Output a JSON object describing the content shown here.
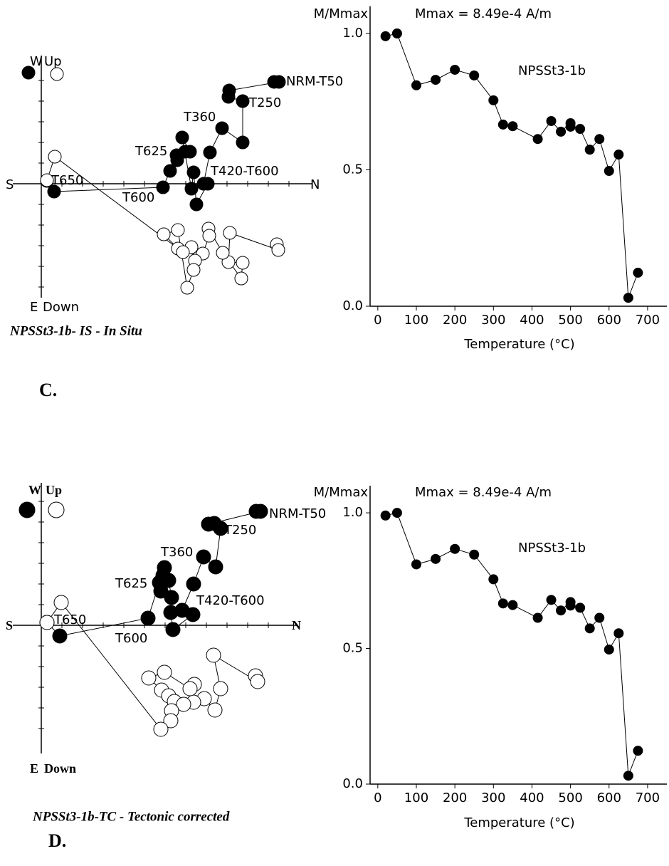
{
  "chart_data": [
    {
      "type": "zijderveld",
      "title": "NPSSt3-1b- IS - In Situ",
      "panel_label": "C.",
      "axis_labels": {
        "left": "S",
        "right": "N",
        "top_left": "W",
        "top": "Up",
        "bottom_left": "E",
        "bottom": "Down"
      },
      "xlim": [
        -4,
        38
      ],
      "ylim": [
        -16,
        18
      ],
      "annotations": [
        "NRM-T50",
        "T250",
        "T360",
        "T625",
        "T420-T600",
        "T600",
        "T650"
      ],
      "series": [
        {
          "color": "#000000",
          "x": [
            32.7,
            33.4,
            26.4,
            26.3,
            28.3,
            28.3,
            25.4,
            23.7,
            22.8,
            23.4,
            21.8,
            21.4,
            21.1,
            19.8,
            20.9,
            20.2,
            19.0,
            19.1,
            18.1,
            17.1,
            1.8,
            0.8
          ],
          "values": [
            14.3,
            14.3,
            13.1,
            12.2,
            11.6,
            5.8,
            7.8,
            4.4,
            0,
            0,
            -2.9,
            1.6,
            -0.7,
            6.5,
            4.5,
            4.5,
            4.0,
            3.3,
            1.8,
            -0.5,
            -1.1,
            0.4
          ]
        },
        {
          "color": "#ffffff",
          "x": [
            33.1,
            33.3,
            26.5,
            26.3,
            28.3,
            28.1,
            25.5,
            23.5,
            23.6,
            22.7,
            21.6,
            21.1,
            21.4,
            20.5,
            19.2,
            17.2,
            19.2,
            19.9,
            1.9,
            0.8
          ],
          "values": [
            -8.5,
            -9.3,
            -6.9,
            -11.0,
            -11.1,
            -13.3,
            -9.7,
            -6.3,
            -7.3,
            -9.8,
            -10.8,
            -8.9,
            -12.1,
            -14.6,
            -6.5,
            -7.1,
            -9.1,
            -9.6,
            3.8,
            0.5
          ]
        }
      ]
    },
    {
      "type": "line",
      "y_label": "M/Mmax",
      "x_label": "Temperature (°C)",
      "annotations": [
        "Mmax = 8.49e-4 A/m",
        "NPSSt3-1b"
      ],
      "xlim": [
        -20,
        750
      ],
      "ylim": [
        0,
        1.1
      ],
      "xticks": [
        0,
        100,
        200,
        300,
        400,
        500,
        600,
        700
      ],
      "yticks": [
        {
          "value": 0,
          "label": "0.0"
        },
        {
          "value": 0.5,
          "label": "0.5"
        },
        {
          "value": 1,
          "label": "1.0"
        }
      ],
      "series": [
        {
          "color": "#000000",
          "x": [
            20,
            50,
            100,
            150,
            200,
            250,
            300,
            325,
            350,
            415,
            450,
            475,
            500,
            500,
            525,
            550,
            575,
            600,
            625,
            650,
            675
          ],
          "values": [
            0.99,
            1.0,
            0.81,
            0.83,
            0.867,
            0.846,
            0.755,
            0.666,
            0.66,
            0.613,
            0.679,
            0.64,
            0.671,
            0.658,
            0.65,
            0.574,
            0.613,
            0.496,
            0.556,
            0.031,
            0.123
          ]
        }
      ]
    },
    {
      "type": "zijderveld",
      "title": "NPSSt3-1b-TC  - Tectonic corrected",
      "panel_label": "D.",
      "axis_labels": {
        "left": "S",
        "right": "N",
        "top_left": "W",
        "top": "Up",
        "bottom_left": "E",
        "bottom": "Down"
      },
      "xlim": [
        -4,
        36
      ],
      "ylim": [
        -18,
        20
      ],
      "annotations": [
        "NRM-T50",
        "T250",
        "T360",
        "T625",
        "T420-T600",
        "T600",
        "T650"
      ],
      "series": [
        {
          "color": "#000000",
          "x": [
            30.2,
            30.8,
            23.5,
            24.3,
            25.2,
            24.5,
            22.8,
            21.4,
            19.8,
            21.3,
            18.5,
            18.2,
            18.3,
            17.9,
            17.3,
            17.1,
            16.8,
            16.6,
            15.0,
            2.6,
            0.8
          ],
          "values": [
            16.0,
            16.0,
            14.2,
            14.3,
            13.6,
            8.2,
            9.6,
            5.8,
            2.1,
            1.5,
            -0.6,
            1.8,
            3.9,
            6.3,
            8.1,
            7.0,
            4.8,
            6.0,
            1.0,
            -1.5,
            0.4
          ]
        },
        {
          "color": "#ffffff",
          "x": [
            30.1,
            30.4,
            24.2,
            25.2,
            24.4,
            22.9,
            21.4,
            21.5,
            20.9,
            17.3,
            15.1,
            16.9,
            17.9,
            18.7,
            20.0,
            18.3,
            18.2,
            16.8,
            2.8,
            0.8
          ],
          "values": [
            -7.1,
            -7.9,
            -4.2,
            -8.9,
            -11.9,
            -10.3,
            -10.8,
            -8.3,
            -8.9,
            -6.6,
            -7.4,
            -9.1,
            -9.9,
            -10.7,
            -11.1,
            -12.0,
            -13.4,
            -14.6,
            3.2,
            0.4
          ]
        }
      ]
    },
    {
      "type": "line",
      "y_label": "M/Mmax",
      "x_label": "Temperature (°C)",
      "annotations": [
        "Mmax = 8.49e-4 A/m",
        "NPSSt3-1b"
      ],
      "xlim": [
        -20,
        750
      ],
      "ylim": [
        0,
        1.1
      ],
      "xticks": [
        0,
        100,
        200,
        300,
        400,
        500,
        600,
        700
      ],
      "yticks": [
        {
          "value": 0,
          "label": "0.0"
        },
        {
          "value": 0.5,
          "label": "0.5"
        },
        {
          "value": 1,
          "label": "1.0"
        }
      ],
      "series": [
        {
          "color": "#000000",
          "x": [
            20,
            50,
            100,
            150,
            200,
            250,
            300,
            325,
            350,
            415,
            450,
            475,
            500,
            500,
            525,
            550,
            575,
            600,
            625,
            650,
            675
          ],
          "values": [
            0.99,
            1.0,
            0.81,
            0.83,
            0.867,
            0.846,
            0.755,
            0.666,
            0.66,
            0.613,
            0.679,
            0.64,
            0.671,
            0.658,
            0.65,
            0.574,
            0.613,
            0.496,
            0.556,
            0.031,
            0.123
          ]
        }
      ]
    }
  ]
}
